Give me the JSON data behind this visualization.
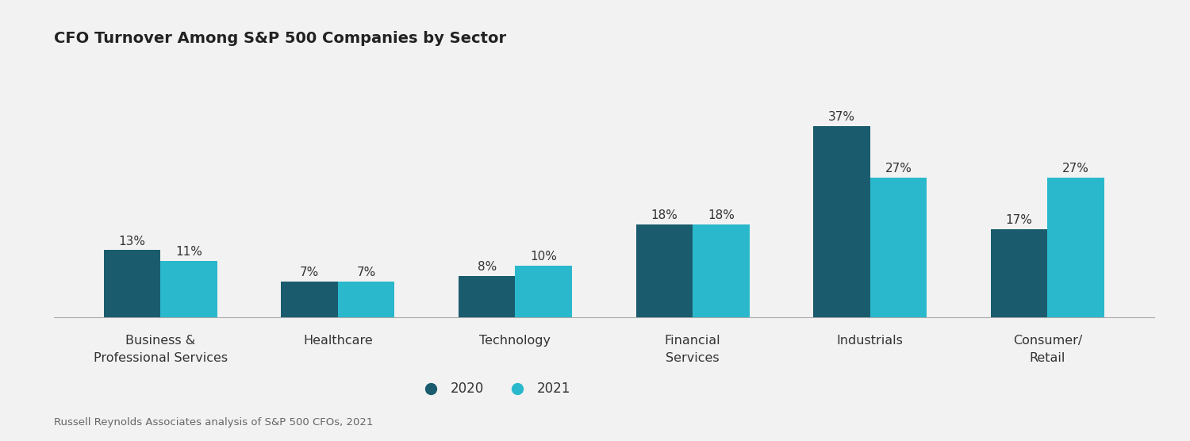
{
  "title": "CFO Turnover Among S&P 500 Companies by Sector",
  "categories": [
    "Business &\nProfessional Services",
    "Healthcare",
    "Technology",
    "Financial\nServices",
    "Industrials",
    "Consumer/\nRetail"
  ],
  "values_2020": [
    13,
    7,
    8,
    18,
    37,
    17
  ],
  "values_2021": [
    11,
    7,
    10,
    18,
    27,
    27
  ],
  "color_2020": "#1a5c6e",
  "color_2021": "#2ab8cc",
  "bar_width": 0.32,
  "ylim": [
    0,
    46
  ],
  "background_color": "#f2f2f2",
  "title_fontsize": 14,
  "label_fontsize": 11.5,
  "value_fontsize": 11,
  "legend_fontsize": 12,
  "footnote": "Russell Reynolds Associates analysis of S&P 500 CFOs, 2021",
  "footnote_fontsize": 9.5,
  "legend_labels": [
    "2020",
    "2021"
  ]
}
